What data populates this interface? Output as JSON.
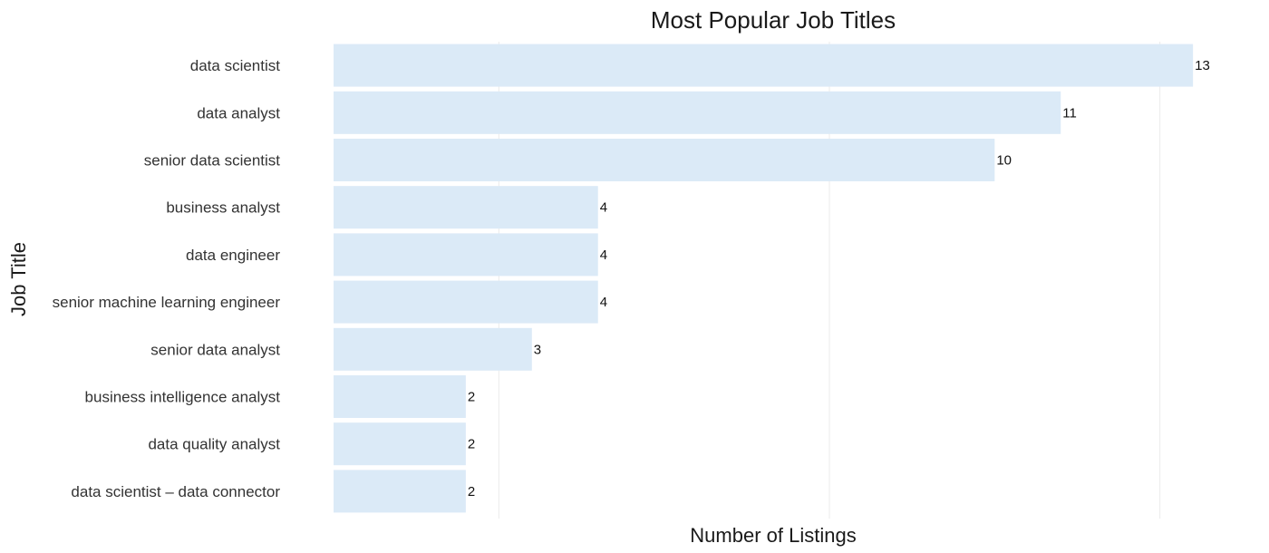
{
  "chart_data": {
    "type": "bar",
    "orientation": "horizontal",
    "title": "Most Popular Job Titles",
    "xlabel": "Number of Listings",
    "ylabel": "Job Title",
    "categories": [
      "data scientist",
      "data analyst",
      "senior data scientist",
      "business analyst",
      "data engineer",
      "senior machine learning engineer",
      "senior data analyst",
      "business intelligence analyst",
      "data quality analyst",
      "data scientist – data connector"
    ],
    "values": [
      13,
      11,
      10,
      4,
      4,
      4,
      3,
      2,
      2,
      2
    ],
    "xlim": [
      0,
      13.3
    ],
    "grid": true,
    "x_tick_labels_shown": false,
    "bar_color": "#dbeaf7",
    "grid_color": "#ebebeb"
  }
}
